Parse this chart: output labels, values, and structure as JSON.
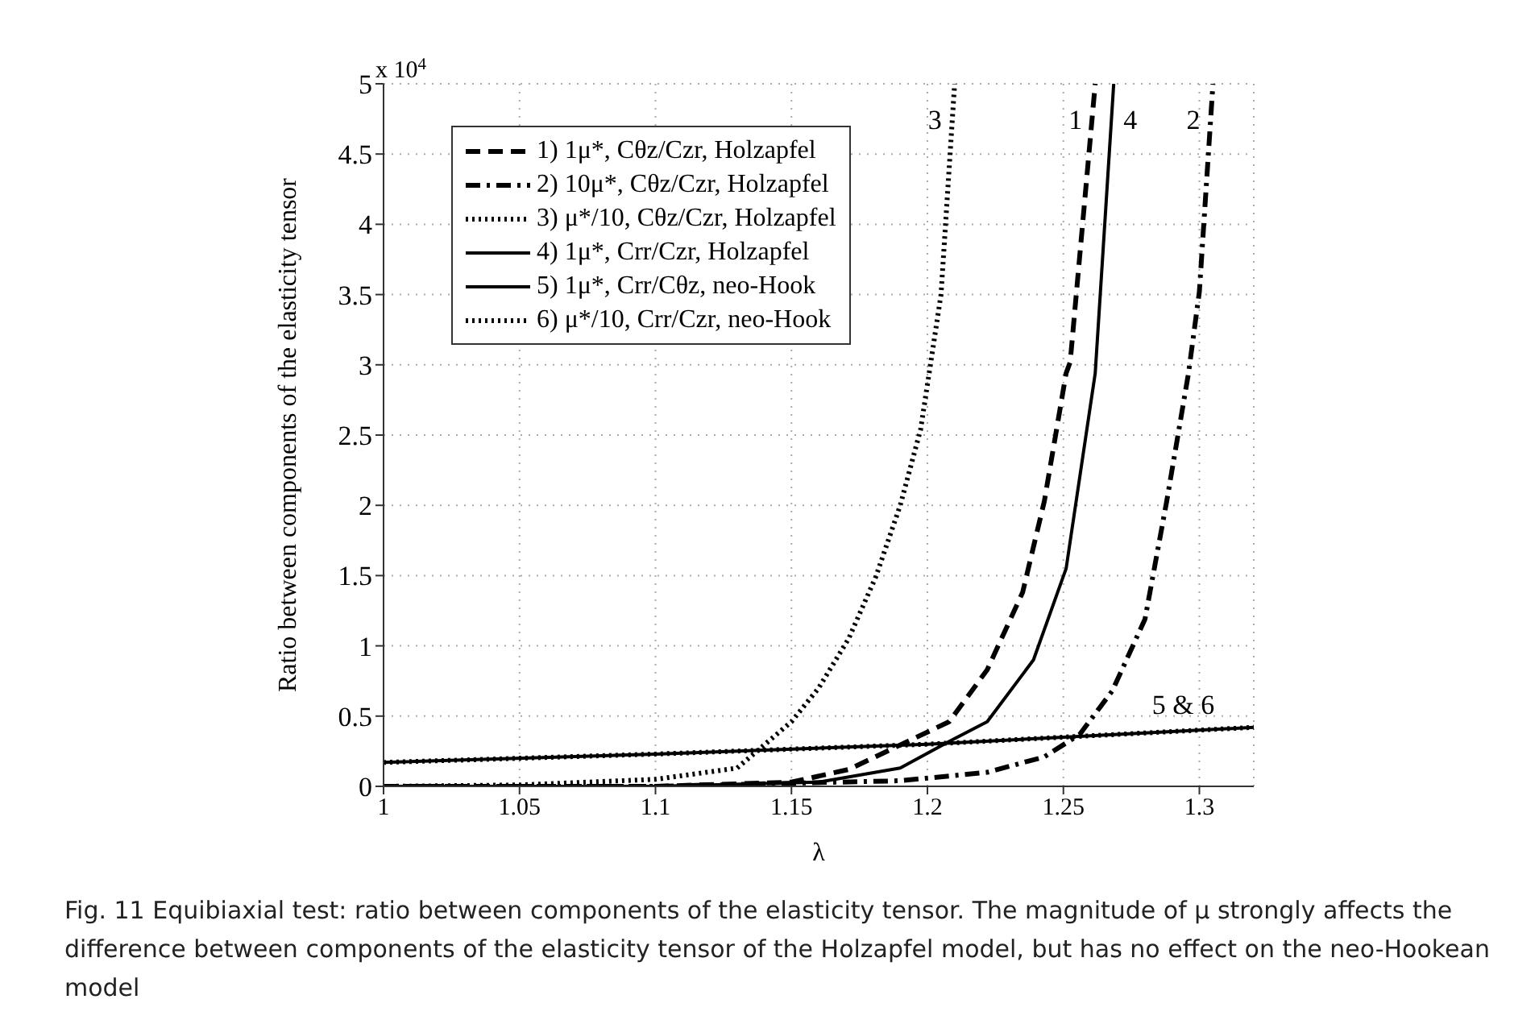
{
  "chart_data": {
    "type": "line",
    "xlabel": "λ",
    "ylabel": "Ratio between components of the elasticity tensor",
    "xlim": [
      1,
      1.32
    ],
    "xticks": [
      1,
      1.05,
      1.1,
      1.15,
      1.2,
      1.25,
      1.3
    ],
    "ylim": [
      0,
      5
    ],
    "yticks": [
      0,
      0.5,
      1,
      1.5,
      2,
      2.5,
      3,
      3.5,
      4,
      4.5,
      5
    ],
    "grid": true,
    "legend": "top left",
    "series": [
      {
        "name": "1) 1μ*, Cθz/Czr, Holzapfel",
        "color": "#000000",
        "line_style": "dashed",
        "x": [
          1,
          1.1,
          1.15,
          1.171,
          1.208,
          1.222,
          1.235,
          1.243,
          1.251,
          1.2525,
          1.2617
        ],
        "values": [
          0,
          0,
          0.03,
          0.12,
          0.46,
          0.83,
          1.38,
          2.03,
          2.94,
          3.02,
          5
        ]
      },
      {
        "name": "2) 10μ*, Cθz/Czr, Holzapfel",
        "color": "#000000",
        "line_style": "dashdot",
        "x": [
          1,
          1.1,
          1.19,
          1.222,
          1.243,
          1.256,
          1.268,
          1.28,
          1.288,
          1.296,
          1.3,
          1.305
        ],
        "values": [
          0,
          0,
          0.04,
          0.1,
          0.21,
          0.37,
          0.68,
          1.19,
          2.03,
          2.94,
          3.52,
          5
        ]
      },
      {
        "name": "3) μ*/10, Cθz/Czr, Holzapfel",
        "color": "#000000",
        "line_style": "dotted",
        "x": [
          1,
          1.05,
          1.1,
          1.13,
          1.15,
          1.16,
          1.171,
          1.181,
          1.19,
          1.1975,
          1.205,
          1.21
        ],
        "values": [
          0,
          0.01,
          0.05,
          0.13,
          0.46,
          0.7,
          1.05,
          1.49,
          2,
          2.54,
          3.5,
          5
        ]
      },
      {
        "name": "4) 1μ*, Crr/Czr, Holzapfel",
        "color": "#000000",
        "line_style": "solid",
        "x": [
          1,
          1.1,
          1.16,
          1.19,
          1.208,
          1.222,
          1.239,
          1.251,
          1.2617,
          1.2685
        ],
        "values": [
          0,
          0,
          0.03,
          0.13,
          0.32,
          0.46,
          0.9,
          1.55,
          2.94,
          5
        ]
      },
      {
        "name": "5) 1μ*, Crr/Cθz, neo-Hook",
        "color": "#000000",
        "line_style": "solid",
        "x": [
          1,
          1.1,
          1.2,
          1.25,
          1.32
        ],
        "values": [
          0.17,
          0.23,
          0.3,
          0.35,
          0.42
        ]
      },
      {
        "name": "6) μ*/10, Crr/Czr, neo-Hook",
        "color": "#000000",
        "line_style": "dotted",
        "x": [
          1,
          1.1,
          1.2,
          1.25,
          1.32
        ],
        "values": [
          0.17,
          0.23,
          0.3,
          0.35,
          0.42
        ]
      }
    ],
    "annotations": [
      {
        "text": "3",
        "x": 1.21,
        "y": 5
      },
      {
        "text": "1",
        "x": 1.2617,
        "y": 5
      },
      {
        "text": "4",
        "x": 1.2685,
        "y": 5
      },
      {
        "text": "2",
        "x": 1.305,
        "y": 5
      },
      {
        "text": "5 & 6",
        "x": 1.3,
        "y": 0.4
      },
      "x 10$^{4}$",
      "Fig. 11  Equibiaxial test: ratio between components of the elasticity tensor. The magnitude of μ strongly affects the difference between components of the elasticity tensor of the Holzapfel model, but has no effect on the neo-Hookean model"
    ]
  }
}
